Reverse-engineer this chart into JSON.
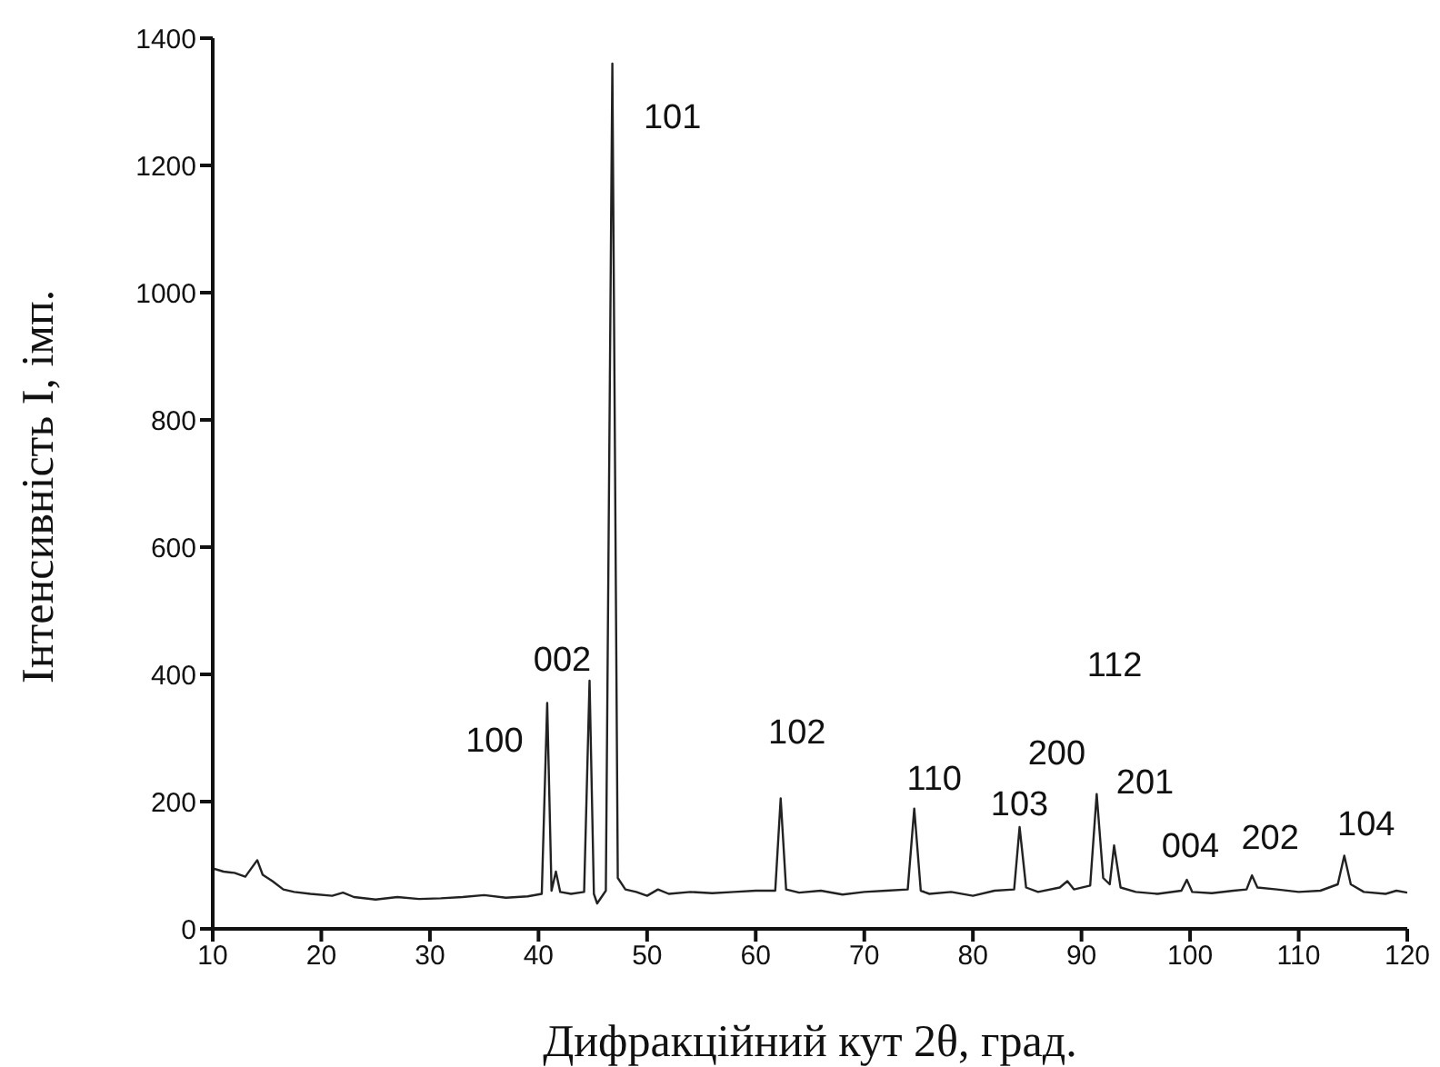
{
  "chart_data": {
    "type": "line",
    "xlabel": "Дифракційний кут 2θ, град.",
    "ylabel": "Інтенсивність I, імп.",
    "x": [
      10,
      11,
      12,
      13,
      14.1,
      14.6,
      15.5,
      16.5,
      17.5,
      19,
      21,
      22,
      23,
      25,
      27,
      29,
      31,
      33,
      35,
      37,
      39,
      40.3,
      40.8,
      41.2,
      41.6,
      42,
      43,
      44.2,
      44.7,
      45.1,
      45.4,
      46.2,
      46.8,
      47.3,
      48,
      49,
      50,
      51,
      52,
      54,
      56,
      58,
      60,
      61.8,
      62.3,
      62.8,
      64,
      66,
      68,
      70,
      72,
      74,
      74.6,
      75.2,
      76,
      78,
      80,
      82,
      83.8,
      84.3,
      84.9,
      86,
      88,
      88.7,
      89.3,
      90.8,
      91.4,
      92,
      92.6,
      93,
      93.6,
      95,
      97,
      99.2,
      99.7,
      100.2,
      102,
      104,
      105.2,
      105.7,
      106.2,
      108,
      110,
      112,
      113.6,
      114.2,
      114.8,
      116,
      118,
      119,
      120
    ],
    "series": [
      {
        "color": "#222222",
        "values": [
          95,
          90,
          88,
          82,
          108,
          85,
          75,
          62,
          58,
          55,
          52,
          57,
          50,
          46,
          50,
          47,
          48,
          50,
          53,
          49,
          51,
          55,
          355,
          60,
          90,
          58,
          55,
          58,
          390,
          55,
          40,
          60,
          1360,
          80,
          62,
          58,
          52,
          62,
          55,
          58,
          56,
          58,
          60,
          60,
          205,
          62,
          57,
          60,
          54,
          58,
          60,
          62,
          189,
          60,
          55,
          58,
          52,
          60,
          62,
          160,
          65,
          58,
          65,
          75,
          62,
          68,
          212,
          80,
          70,
          131,
          65,
          58,
          55,
          60,
          77,
          58,
          56,
          60,
          62,
          84,
          65,
          62,
          58,
          60,
          70,
          115,
          70,
          58,
          55,
          60,
          57
        ]
      }
    ],
    "xlim": [
      10,
      120
    ],
    "xticks": [
      10,
      20,
      30,
      40,
      50,
      60,
      70,
      80,
      90,
      100,
      110,
      120
    ],
    "ylim": [
      0,
      1400
    ],
    "yticks": [
      0,
      200,
      400,
      600,
      800,
      1000,
      1200,
      1400
    ],
    "grid": false,
    "legend": false,
    "marker": "none",
    "line_style": "solid",
    "annotations": [
      {
        "text": "100",
        "x": 40.8,
        "y": 355
      },
      {
        "text": "002",
        "x": 44.7,
        "y": 390
      },
      {
        "text": "101",
        "x": 46.8,
        "y": 1360
      },
      {
        "text": "102",
        "x": 62.3,
        "y": 205
      },
      {
        "text": "110",
        "x": 74.6,
        "y": 189
      },
      {
        "text": "103",
        "x": 84.3,
        "y": 160
      },
      {
        "text": "200",
        "x": 91.4,
        "y": 212
      },
      "112",
      {
        "text": "201",
        "x": 93,
        "y": 131
      },
      {
        "text": "004",
        "x": 99.7,
        "y": 77
      },
      {
        "text": "202",
        "x": 105.7,
        "y": 84
      },
      {
        "text": "104",
        "x": 114.2,
        "y": 115
      }
    ]
  }
}
